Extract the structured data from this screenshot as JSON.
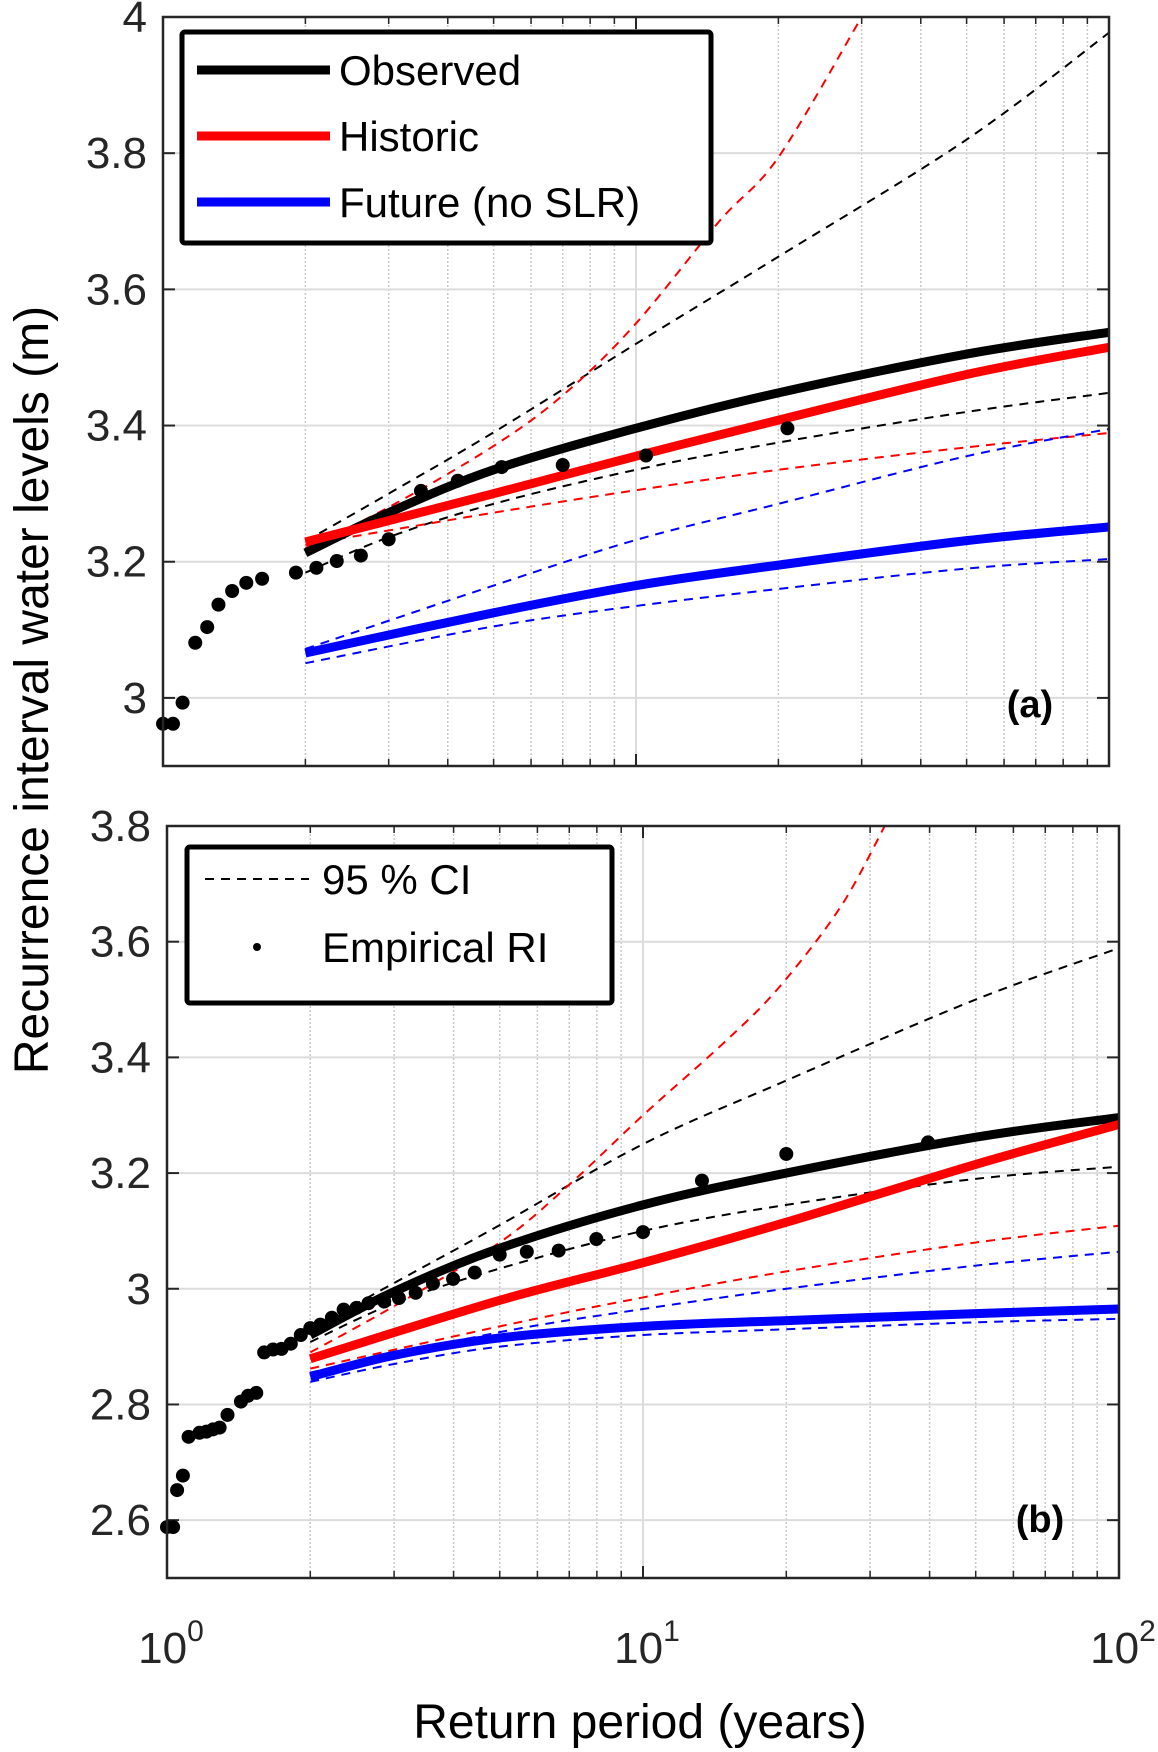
{
  "chart_data": [
    {
      "type": "line",
      "panel_label": "(a)",
      "xscale": "log",
      "xlim": [
        1,
        100
      ],
      "ylim": [
        2.9,
        4.0
      ],
      "yticks": [
        3,
        3.2,
        3.4,
        3.6,
        3.8,
        4
      ],
      "ytick_labels": [
        "3",
        "3.2",
        "3.4",
        "3.6",
        "3.8",
        "4"
      ],
      "grid": true,
      "legend": {
        "placement": "top-left",
        "entries": [
          {
            "label": "Observed",
            "color": "#000000",
            "style": "solid"
          },
          {
            "label": "Historic",
            "color": "#ff0000",
            "style": "solid"
          },
          {
            "label": "Future (no SLR)",
            "color": "#0000ff",
            "style": "solid"
          }
        ]
      },
      "series": [
        {
          "name": "Observed",
          "color": "#000000",
          "style": "solid",
          "x": [
            2,
            3,
            5,
            10,
            20,
            50,
            100
          ],
          "y": [
            3.213,
            3.272,
            3.335,
            3.396,
            3.448,
            3.505,
            3.537
          ]
        },
        {
          "name": "Observed 95% CI upper",
          "color": "#000000",
          "style": "dashed",
          "x": [
            2,
            3,
            5,
            10,
            20,
            50,
            100
          ],
          "y": [
            3.23,
            3.3,
            3.39,
            3.52,
            3.648,
            3.82,
            3.977
          ]
        },
        {
          "name": "Observed 95% CI lower",
          "color": "#000000",
          "style": "dashed",
          "x": [
            2,
            3,
            5,
            10,
            20,
            50,
            100
          ],
          "y": [
            3.184,
            3.236,
            3.285,
            3.335,
            3.375,
            3.42,
            3.448
          ]
        },
        {
          "name": "Historic",
          "color": "#ff0000",
          "style": "solid",
          "x": [
            2,
            5,
            10,
            20,
            50,
            100
          ],
          "y": [
            3.229,
            3.3,
            3.355,
            3.408,
            3.475,
            3.515
          ]
        },
        {
          "name": "Historic 95% CI upper",
          "color": "#ff0000",
          "style": "dashed",
          "x": [
            2,
            3,
            5,
            7.1,
            10,
            15,
            20,
            30
          ],
          "y": [
            3.22,
            3.28,
            3.37,
            3.448,
            3.55,
            3.7,
            3.794,
            4.0
          ]
        },
        {
          "name": "Historic 95% CI lower",
          "color": "#ff0000",
          "style": "dashed",
          "x": [
            2,
            5,
            10,
            20,
            50,
            100
          ],
          "y": [
            3.225,
            3.272,
            3.305,
            3.335,
            3.368,
            3.389
          ]
        },
        {
          "name": "Future (no SLR)",
          "color": "#0000ff",
          "style": "solid",
          "x": [
            2,
            5,
            10,
            20,
            50,
            100
          ],
          "y": [
            3.066,
            3.125,
            3.165,
            3.195,
            3.231,
            3.251
          ]
        },
        {
          "name": "Future 95% CI upper",
          "color": "#0000ff",
          "style": "dashed",
          "x": [
            2,
            5,
            10,
            20,
            50,
            100
          ],
          "y": [
            3.072,
            3.165,
            3.232,
            3.285,
            3.355,
            3.395
          ]
        },
        {
          "name": "Future 95% CI lower",
          "color": "#0000ff",
          "style": "dashed",
          "x": [
            2,
            5,
            10,
            20,
            50,
            100
          ],
          "y": [
            3.051,
            3.105,
            3.135,
            3.16,
            3.19,
            3.204
          ]
        }
      ],
      "empirical_points": {
        "x": [
          1.0,
          1.05,
          1.1,
          1.17,
          1.24,
          1.31,
          1.4,
          1.5,
          1.62,
          1.91,
          2.11,
          2.33,
          2.62,
          3.0,
          3.51,
          4.2,
          5.2,
          7.0,
          10.5,
          20.9
        ],
        "y": [
          2.962,
          2.962,
          2.993,
          3.081,
          3.104,
          3.137,
          3.157,
          3.169,
          3.175,
          3.184,
          3.191,
          3.201,
          3.209,
          3.233,
          3.304,
          3.319,
          3.339,
          3.342,
          3.356,
          3.396
        ]
      }
    },
    {
      "type": "line",
      "panel_label": "(b)",
      "xscale": "log",
      "xlim": [
        1,
        100
      ],
      "ylim": [
        2.5,
        3.8
      ],
      "yticks": [
        2.6,
        2.8,
        3,
        3.2,
        3.4,
        3.6,
        3.8
      ],
      "ytick_labels": [
        "2.6",
        "2.8",
        "3",
        "3.2",
        "3.4",
        "3.6",
        "3.8"
      ],
      "xticks": [
        1,
        10,
        100
      ],
      "xtick_labels": [
        {
          "base": "10",
          "exp": "0"
        },
        {
          "base": "10",
          "exp": "1"
        },
        {
          "base": "10",
          "exp": "2"
        }
      ],
      "grid": true,
      "legend": {
        "placement": "top-left",
        "entries": [
          {
            "label": "95 % CI",
            "color": "#000000",
            "style": "dashed"
          },
          {
            "label": "Empirical RI",
            "color": "#000000",
            "style": "marker"
          }
        ]
      },
      "series": [
        {
          "name": "Observed",
          "color": "#000000",
          "style": "solid",
          "x": [
            2,
            3,
            5,
            10,
            20,
            50,
            100
          ],
          "y": [
            2.92,
            2.995,
            3.07,
            3.145,
            3.2,
            3.262,
            3.296
          ]
        },
        {
          "name": "Observed 95% CI upper",
          "color": "#000000",
          "style": "dashed",
          "x": [
            2,
            3,
            5,
            10,
            20,
            50,
            100
          ],
          "y": [
            2.93,
            3.01,
            3.11,
            3.25,
            3.36,
            3.5,
            3.589
          ]
        },
        {
          "name": "Observed 95% CI lower",
          "color": "#000000",
          "style": "dashed",
          "x": [
            2,
            3,
            5,
            10,
            20,
            50,
            100
          ],
          "y": [
            2.908,
            2.975,
            3.035,
            3.1,
            3.145,
            3.19,
            3.211
          ]
        },
        {
          "name": "Historic",
          "color": "#ff0000",
          "style": "solid",
          "x": [
            2,
            5,
            10,
            20,
            50,
            100
          ],
          "y": [
            2.879,
            2.98,
            3.045,
            3.115,
            3.215,
            3.284
          ]
        },
        {
          "name": "Historic 95% CI upper",
          "color": "#ff0000",
          "style": "dashed",
          "x": [
            2,
            3,
            5,
            7,
            10,
            15,
            19.4,
            26,
            32.2
          ],
          "y": [
            2.89,
            2.97,
            3.08,
            3.18,
            3.3,
            3.43,
            3.523,
            3.66,
            3.8
          ]
        },
        {
          "name": "Historic 95% CI lower",
          "color": "#ff0000",
          "style": "dashed",
          "x": [
            2,
            5,
            10,
            20,
            50,
            100
          ],
          "y": [
            2.862,
            2.935,
            2.985,
            3.03,
            3.08,
            3.109
          ]
        },
        {
          "name": "Future (no SLR)",
          "color": "#0000ff",
          "style": "solid",
          "x": [
            2,
            3,
            5,
            10,
            20,
            50,
            100
          ],
          "y": [
            2.848,
            2.885,
            2.915,
            2.935,
            2.945,
            2.957,
            2.965
          ]
        },
        {
          "name": "Future 95% CI upper",
          "color": "#0000ff",
          "style": "dashed",
          "x": [
            2,
            5,
            10,
            20,
            50,
            100
          ],
          "y": [
            2.855,
            2.925,
            2.965,
            3.0,
            3.04,
            3.064
          ]
        },
        {
          "name": "Future 95% CI lower",
          "color": "#0000ff",
          "style": "dashed",
          "x": [
            2,
            3,
            5,
            10,
            20,
            50,
            100
          ],
          "y": [
            2.839,
            2.87,
            2.9,
            2.92,
            2.93,
            2.942,
            2.948
          ]
        }
      ],
      "empirical_points": {
        "x": [
          1.0,
          1.03,
          1.05,
          1.08,
          1.11,
          1.17,
          1.21,
          1.25,
          1.29,
          1.34,
          1.43,
          1.48,
          1.54,
          1.6,
          1.67,
          1.74,
          1.82,
          1.91,
          2.0,
          2.1,
          2.22,
          2.35,
          2.5,
          2.65,
          2.86,
          3.07,
          3.33,
          3.62,
          3.99,
          4.43,
          5.0,
          5.7,
          6.65,
          7.98,
          10.0,
          13.3,
          20.0,
          39.7
        ],
        "y": [
          2.588,
          2.588,
          2.652,
          2.677,
          2.744,
          2.751,
          2.753,
          2.757,
          2.76,
          2.782,
          2.805,
          2.815,
          2.82,
          2.89,
          2.895,
          2.896,
          2.905,
          2.92,
          2.932,
          2.938,
          2.95,
          2.964,
          2.967,
          2.975,
          2.978,
          2.984,
          2.993,
          3.009,
          3.017,
          3.028,
          3.059,
          3.064,
          3.066,
          3.086,
          3.098,
          3.187,
          3.233,
          3.253
        ]
      }
    }
  ],
  "shared": {
    "ylabel": "Recurrence interval water levels (m)",
    "xlabel": "Return period (years)"
  }
}
